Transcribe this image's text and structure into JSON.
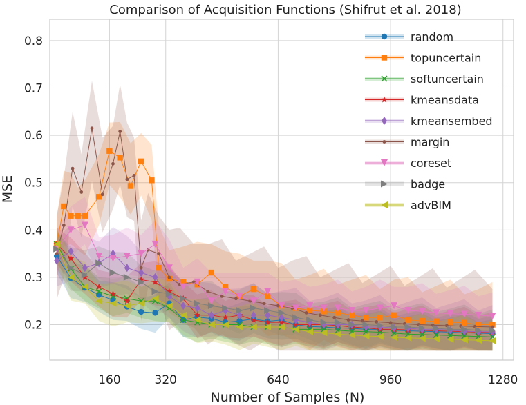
{
  "chart_data": {
    "type": "line",
    "title": "Comparison of Acquisition Functions (Shifrut et al. 2018)",
    "xlabel": "Number of Samples (N)",
    "ylabel": "MSE",
    "xlim": [
      -10,
      1310
    ],
    "ylim": [
      0.125,
      0.845
    ],
    "xticks": [
      160,
      320,
      640,
      960,
      1280
    ],
    "yticks": [
      0.2,
      0.3,
      0.4,
      0.5,
      0.6,
      0.7,
      0.8
    ],
    "ytick_labels": [
      "0.2",
      "0.3",
      "0.4",
      "0.5",
      "0.6",
      "0.7",
      "0.8"
    ],
    "grid": true,
    "legend_position": "top-right",
    "series": [
      {
        "name": "random",
        "color": "#1f77b4",
        "marker": "circle",
        "x": [
          10,
          50,
          90,
          130,
          170,
          210,
          250,
          290,
          330,
          370,
          410,
          450,
          490,
          530,
          570,
          610,
          650,
          690,
          730,
          770,
          810,
          850,
          890,
          930,
          970,
          1010,
          1050,
          1090,
          1130,
          1170,
          1210,
          1250
        ],
        "values": [
          0.345,
          0.298,
          0.278,
          0.263,
          0.252,
          0.238,
          0.227,
          0.225,
          0.245,
          0.21,
          0.216,
          0.213,
          0.205,
          0.208,
          0.212,
          0.207,
          0.21,
          0.2,
          0.196,
          0.195,
          0.193,
          0.192,
          0.19,
          0.19,
          0.188,
          0.187,
          0.186,
          0.185,
          0.184,
          0.183,
          0.182,
          0.181
        ],
        "band": 0.03
      },
      {
        "name": "topuncertain",
        "color": "#ff7f0e",
        "marker": "square",
        "x": [
          10,
          30,
          50,
          70,
          90,
          130,
          160,
          190,
          220,
          250,
          280,
          300,
          330,
          370,
          410,
          450,
          490,
          530,
          570,
          610,
          650,
          690,
          730,
          770,
          810,
          850,
          890,
          930,
          970,
          1010,
          1050,
          1090,
          1130,
          1170,
          1210,
          1250
        ],
        "values": [
          0.37,
          0.45,
          0.43,
          0.43,
          0.43,
          0.47,
          0.567,
          0.553,
          0.493,
          0.545,
          0.505,
          0.32,
          0.297,
          0.29,
          0.285,
          0.31,
          0.28,
          0.26,
          0.275,
          0.26,
          0.24,
          0.235,
          0.23,
          0.228,
          0.225,
          0.22,
          0.215,
          0.215,
          0.22,
          0.21,
          0.208,
          0.207,
          0.205,
          0.204,
          0.2,
          0.2
        ],
        "band": 0.06
      },
      {
        "name": "softuncertain",
        "color": "#2ca02c",
        "marker": "x",
        "x": [
          10,
          50,
          90,
          130,
          170,
          210,
          250,
          290,
          330,
          370,
          410,
          450,
          490,
          530,
          570,
          610,
          650,
          690,
          730,
          770,
          810,
          850,
          890,
          930,
          970,
          1010,
          1050,
          1090,
          1130,
          1170,
          1210,
          1250
        ],
        "values": [
          0.37,
          0.318,
          0.28,
          0.27,
          0.26,
          0.255,
          0.25,
          0.25,
          0.235,
          0.21,
          0.205,
          0.2,
          0.2,
          0.2,
          0.195,
          0.195,
          0.195,
          0.19,
          0.19,
          0.19,
          0.188,
          0.186,
          0.185,
          0.184,
          0.182,
          0.18,
          0.179,
          0.178,
          0.177,
          0.176,
          0.175,
          0.174
        ],
        "band": 0.03
      },
      {
        "name": "kmeansdata",
        "color": "#d62728",
        "marker": "star",
        "x": [
          10,
          50,
          90,
          130,
          170,
          210,
          250,
          290,
          330,
          370,
          410,
          450,
          490,
          530,
          570,
          610,
          650,
          690,
          730,
          770,
          810,
          850,
          890,
          930,
          970,
          1010,
          1050,
          1090,
          1130,
          1170,
          1210,
          1250
        ],
        "values": [
          0.37,
          0.34,
          0.3,
          0.28,
          0.265,
          0.25,
          0.295,
          0.29,
          0.27,
          0.255,
          0.22,
          0.22,
          0.215,
          0.22,
          0.21,
          0.205,
          0.205,
          0.2,
          0.2,
          0.2,
          0.198,
          0.195,
          0.193,
          0.19,
          0.19,
          0.189,
          0.188,
          0.187,
          0.186,
          0.185,
          0.184,
          0.183
        ],
        "band": 0.035
      },
      {
        "name": "kmeansembed",
        "color": "#9467bd",
        "marker": "diamond",
        "x": [
          10,
          50,
          90,
          130,
          170,
          210,
          250,
          290,
          330,
          370,
          410,
          450,
          490,
          530,
          570,
          610,
          650,
          690,
          730,
          770,
          810,
          850,
          890,
          930,
          970,
          1010,
          1050,
          1090,
          1130,
          1170,
          1210,
          1250
        ],
        "values": [
          0.335,
          0.355,
          0.32,
          0.33,
          0.35,
          0.32,
          0.31,
          0.3,
          0.26,
          0.24,
          0.235,
          0.22,
          0.23,
          0.22,
          0.22,
          0.22,
          0.215,
          0.21,
          0.205,
          0.2,
          0.2,
          0.2,
          0.195,
          0.195,
          0.193,
          0.192,
          0.19,
          0.19,
          0.188,
          0.186,
          0.185,
          0.185
        ],
        "band": 0.045
      },
      {
        "name": "margin",
        "color": "#8c564b",
        "marker": "dot",
        "x": [
          10,
          30,
          55,
          80,
          110,
          140,
          170,
          190,
          210,
          230,
          250,
          270,
          300,
          330,
          360,
          400,
          440,
          480,
          520,
          560,
          600,
          640,
          680,
          720,
          760,
          800,
          840,
          880,
          920,
          960,
          1000,
          1040,
          1080,
          1120,
          1160,
          1200,
          1250
        ],
        "values": [
          0.35,
          0.41,
          0.53,
          0.48,
          0.615,
          0.475,
          0.54,
          0.608,
          0.507,
          0.515,
          0.32,
          0.358,
          0.35,
          0.3,
          0.285,
          0.29,
          0.27,
          0.26,
          0.255,
          0.25,
          0.245,
          0.24,
          0.235,
          0.225,
          0.22,
          0.215,
          0.21,
          0.208,
          0.206,
          0.204,
          0.202,
          0.2,
          0.199,
          0.198,
          0.197,
          0.196,
          0.195
        ],
        "band": 0.08
      },
      {
        "name": "coreset",
        "color": "#e377c2",
        "marker": "triangle-down",
        "x": [
          10,
          50,
          90,
          130,
          170,
          210,
          250,
          290,
          330,
          370,
          410,
          450,
          490,
          530,
          570,
          610,
          650,
          690,
          730,
          770,
          810,
          850,
          890,
          930,
          970,
          1010,
          1050,
          1090,
          1130,
          1170,
          1210,
          1250
        ],
        "values": [
          0.36,
          0.4,
          0.41,
          0.345,
          0.34,
          0.345,
          0.35,
          0.37,
          0.32,
          0.28,
          0.29,
          0.25,
          0.27,
          0.26,
          0.25,
          0.27,
          0.24,
          0.235,
          0.24,
          0.235,
          0.235,
          0.23,
          0.23,
          0.235,
          0.24,
          0.23,
          0.228,
          0.225,
          0.223,
          0.222,
          0.22,
          0.218
        ],
        "band": 0.04
      },
      {
        "name": "badge",
        "color": "#7f7f7f",
        "marker": "triangle-right",
        "x": [
          10,
          50,
          90,
          130,
          170,
          210,
          250,
          290,
          330,
          370,
          410,
          450,
          490,
          530,
          570,
          610,
          650,
          690,
          730,
          770,
          810,
          850,
          890,
          930,
          970,
          1010,
          1050,
          1090,
          1130,
          1170,
          1210,
          1250
        ],
        "values": [
          0.36,
          0.32,
          0.305,
          0.33,
          0.31,
          0.3,
          0.29,
          0.27,
          0.265,
          0.255,
          0.245,
          0.24,
          0.235,
          0.23,
          0.235,
          0.23,
          0.225,
          0.215,
          0.21,
          0.205,
          0.205,
          0.2,
          0.2,
          0.198,
          0.195,
          0.195,
          0.193,
          0.192,
          0.19,
          0.19,
          0.188,
          0.188
        ],
        "band": 0.035
      },
      {
        "name": "advBIM",
        "color": "#bcbd22",
        "marker": "triangle-left",
        "x": [
          10,
          50,
          90,
          130,
          170,
          210,
          250,
          290,
          330,
          370,
          410,
          450,
          490,
          530,
          570,
          610,
          650,
          690,
          730,
          770,
          810,
          850,
          890,
          930,
          970,
          1010,
          1050,
          1090,
          1130,
          1170,
          1210,
          1250
        ],
        "values": [
          0.37,
          0.3,
          0.28,
          0.25,
          0.245,
          0.24,
          0.245,
          0.255,
          0.24,
          0.22,
          0.21,
          0.2,
          0.2,
          0.195,
          0.195,
          0.195,
          0.195,
          0.19,
          0.185,
          0.183,
          0.18,
          0.178,
          0.176,
          0.175,
          0.173,
          0.172,
          0.171,
          0.17,
          0.169,
          0.168,
          0.167,
          0.166
        ],
        "band": 0.035
      }
    ]
  }
}
